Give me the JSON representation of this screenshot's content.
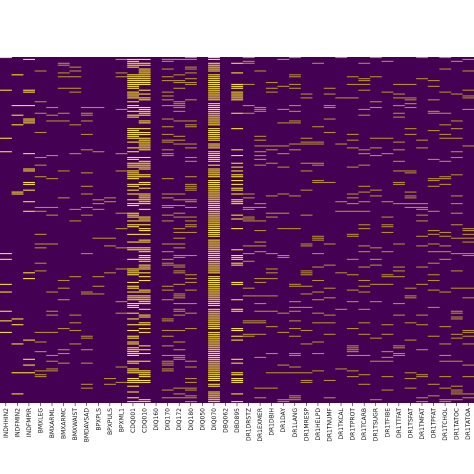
{
  "chart_data": {
    "type": "heatmap",
    "title": "",
    "xlabel": "",
    "ylabel": "",
    "colors": {
      "low": "#440154",
      "high": "#fde725",
      "mid": "#b8902a"
    },
    "grid": false,
    "legend": "none",
    "visible_tick_labels": [
      "INDHHIN2",
      "INDFMIN2",
      "INDFMPIR",
      "BMXLEG",
      "BMXARML",
      "BMXARMC",
      "BMXWAIST",
      "BMDAVSAD",
      "BPXPLS",
      "BPXPULS",
      "BPXML1",
      "CDQ001",
      "CDQ010",
      "DIQ160",
      "DIQ170",
      "DIQ172",
      "DIQ180",
      "DIQ050",
      "DIQ070",
      "DBQ062",
      "DBD895",
      "DR1DRSTZ",
      "DR1EXMER",
      "DR1DBIH",
      "DR1DAY",
      "DR1LANG",
      "DR1MRESP",
      "DR1HELPD",
      "DR1TNUMF",
      "DR1TKCAL",
      "DR1TPROT",
      "DR1TCARB",
      "DR1TSUGR",
      "DR1TFIBE",
      "DR1TTFAT",
      "DR1TSFAT",
      "DR1TMFAT",
      "DR1TPFAT",
      "DR1TCHOL",
      "DR1TATOC",
      "DR1TATOA"
    ],
    "columns": [
      {
        "label": "INDHHIN2",
        "missing_rate": 0.06,
        "stripe_shade": "high"
      },
      {
        "label": "INDFMIN2",
        "missing_rate": 0.06,
        "stripe_shade": "high"
      },
      {
        "label": "INDFMPIR",
        "missing_rate": 0.12,
        "stripe_shade": "high"
      },
      {
        "label": "BMXLEG",
        "missing_rate": 0.1,
        "stripe_shade": "mid"
      },
      {
        "label": "BMXARML",
        "missing_rate": 0.05,
        "stripe_shade": "mid"
      },
      {
        "label": "BMXARMC",
        "missing_rate": 0.05,
        "stripe_shade": "mid"
      },
      {
        "label": "BMXWAIST",
        "missing_rate": 0.08,
        "stripe_shade": "mid"
      },
      {
        "label": "BMDAVSAD",
        "missing_rate": 0.1,
        "stripe_shade": "mid"
      },
      {
        "label": "BPXPLS",
        "missing_rate": 0.08,
        "stripe_shade": "mid"
      },
      {
        "label": "BPXPULS",
        "missing_rate": 0.04,
        "stripe_shade": "mid"
      },
      {
        "label": "BPXML1",
        "missing_rate": 0.08,
        "stripe_shade": "mid"
      },
      {
        "label": "CDQ001",
        "missing_rate": 0.55,
        "stripe_shade": "high"
      },
      {
        "label": "CDQ010",
        "missing_rate": 0.55,
        "stripe_shade": "high"
      },
      {
        "label": "DIQ160",
        "missing_rate": 0.0,
        "stripe_shade": "high"
      },
      {
        "label": "DIQ170",
        "missing_rate": 0.25,
        "stripe_shade": "mid"
      },
      {
        "label": "DIQ172",
        "missing_rate": 0.25,
        "stripe_shade": "mid"
      },
      {
        "label": "DIQ180",
        "missing_rate": 0.25,
        "stripe_shade": "mid"
      },
      {
        "label": "DIQ050",
        "missing_rate": 0.0,
        "stripe_shade": "high"
      },
      {
        "label": "DIQ070",
        "missing_rate": 0.92,
        "stripe_shade": "high"
      },
      {
        "label": "DBQ062",
        "missing_rate": 0.0,
        "stripe_shade": "high"
      },
      {
        "label": "DBD895",
        "missing_rate": 0.3,
        "stripe_shade": "high"
      },
      {
        "label": "DR1DRSTZ",
        "missing_rate": 0.12,
        "stripe_shade": "mid"
      },
      {
        "label": "DR1EXMER",
        "missing_rate": 0.12,
        "stripe_shade": "mid"
      },
      {
        "label": "DR1DBIH",
        "missing_rate": 0.12,
        "stripe_shade": "mid"
      },
      {
        "label": "DR1DAY",
        "missing_rate": 0.12,
        "stripe_shade": "mid"
      },
      {
        "label": "DR1LANG",
        "missing_rate": 0.12,
        "stripe_shade": "mid"
      },
      {
        "label": "DR1MRESP",
        "missing_rate": 0.12,
        "stripe_shade": "mid"
      },
      {
        "label": "DR1HELPD",
        "missing_rate": 0.12,
        "stripe_shade": "mid"
      },
      {
        "label": "DR1TNUMF",
        "missing_rate": 0.12,
        "stripe_shade": "mid"
      },
      {
        "label": "DR1TKCAL",
        "missing_rate": 0.12,
        "stripe_shade": "mid"
      },
      {
        "label": "DR1TPROT",
        "missing_rate": 0.12,
        "stripe_shade": "mid"
      },
      {
        "label": "DR1TCARB",
        "missing_rate": 0.12,
        "stripe_shade": "mid"
      },
      {
        "label": "DR1TSUGR",
        "missing_rate": 0.12,
        "stripe_shade": "mid"
      },
      {
        "label": "DR1TFIBE",
        "missing_rate": 0.12,
        "stripe_shade": "mid"
      },
      {
        "label": "DR1TTFAT",
        "missing_rate": 0.12,
        "stripe_shade": "mid"
      },
      {
        "label": "DR1TSFAT",
        "missing_rate": 0.12,
        "stripe_shade": "mid"
      },
      {
        "label": "DR1TMFAT",
        "missing_rate": 0.12,
        "stripe_shade": "mid"
      },
      {
        "label": "DR1TPFAT",
        "missing_rate": 0.12,
        "stripe_shade": "mid"
      },
      {
        "label": "DR1TCHOL",
        "missing_rate": 0.12,
        "stripe_shade": "mid"
      },
      {
        "label": "DR1TATOC",
        "missing_rate": 0.12,
        "stripe_shade": "mid"
      },
      {
        "label": "DR1TATOA",
        "missing_rate": 0.12,
        "stripe_shade": "mid"
      }
    ]
  }
}
